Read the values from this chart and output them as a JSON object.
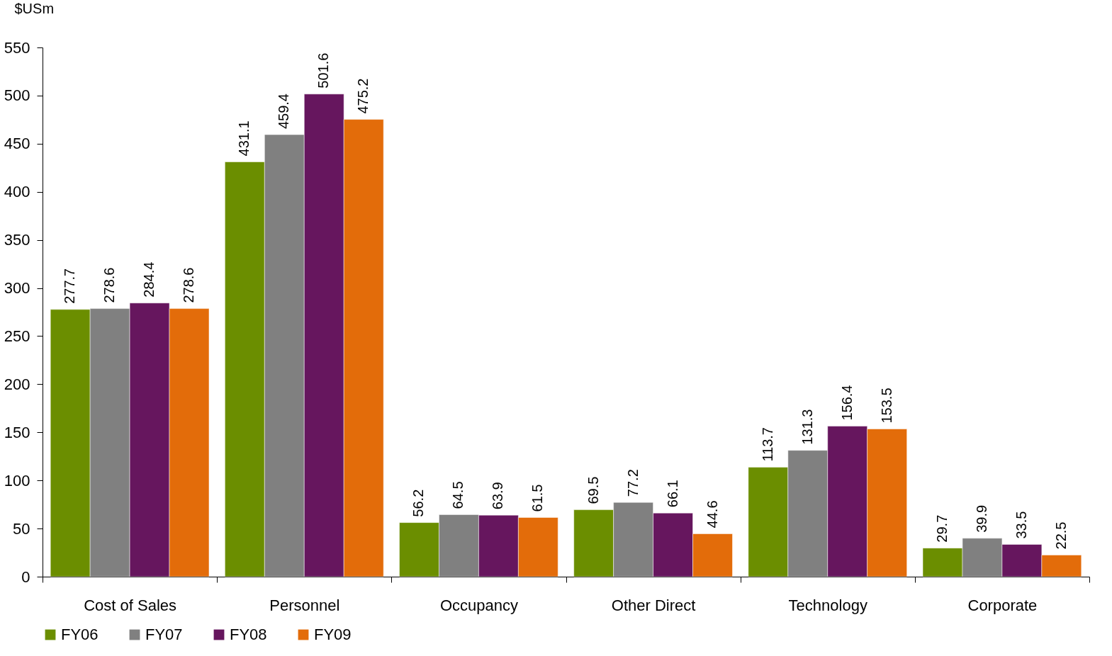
{
  "chart_data": {
    "type": "bar",
    "ylabel": "$USm",
    "categories": [
      "Cost of Sales",
      "Personnel",
      "Occupancy",
      "Other Direct",
      "Technology",
      "Corporate"
    ],
    "series": [
      {
        "name": "FY06",
        "color": "#6b8e00",
        "values": [
          277.7,
          431.1,
          56.2,
          69.5,
          113.7,
          29.7
        ]
      },
      {
        "name": "FY07",
        "color": "#808080",
        "values": [
          278.6,
          459.4,
          64.5,
          77.2,
          131.3,
          39.9
        ]
      },
      {
        "name": "FY08",
        "color": "#66165e",
        "values": [
          284.4,
          501.6,
          63.9,
          66.1,
          156.4,
          33.5
        ]
      },
      {
        "name": "FY09",
        "color": "#e36c0a",
        "values": [
          278.6,
          475.2,
          61.5,
          44.6,
          153.5,
          22.5
        ]
      }
    ],
    "ylim": [
      0,
      550
    ],
    "yticks": [
      0,
      50,
      100,
      150,
      200,
      250,
      300,
      350,
      400,
      450,
      500,
      550
    ],
    "grid": false,
    "legend": "bottom",
    "data_labels": true
  }
}
